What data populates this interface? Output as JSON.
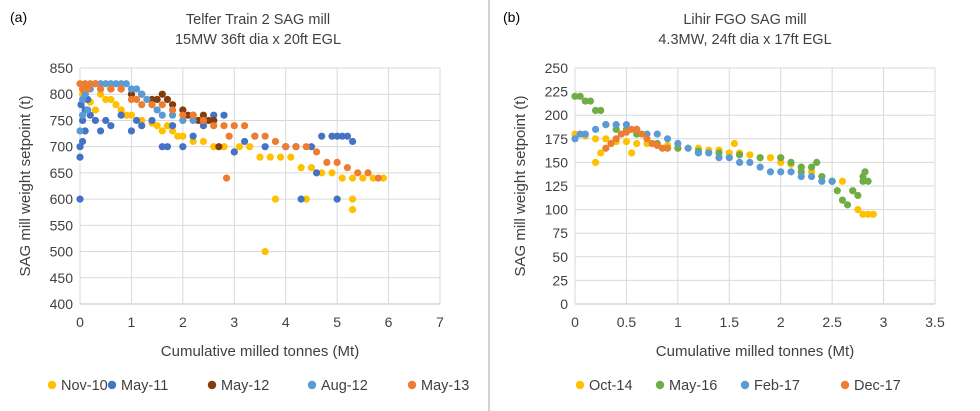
{
  "colors": {
    "yellow": "#ffc000",
    "darkblue": "#4472c4",
    "brown": "#843c0c",
    "lightblue": "#5b9bd5",
    "orange": "#ed7d31",
    "green": "#70ad47"
  },
  "chart_data": [
    {
      "type": "scatter",
      "panel_label": "(a)",
      "title": [
        "Telfer Train 2 SAG mill",
        "15MW 36ft dia x 20ft EGL"
      ],
      "xlabel": "Cumulative milled tonnes (Mt)",
      "ylabel": "SAG mill weight setpoint (t)",
      "xlim": [
        0,
        7
      ],
      "ylim": [
        400,
        850
      ],
      "xticks": [
        "0",
        "1",
        "2",
        "3",
        "4",
        "5",
        "6",
        "7"
      ],
      "yticks": [
        "400",
        "450",
        "500",
        "550",
        "600",
        "650",
        "700",
        "750",
        "800",
        "850"
      ],
      "legend_position": "bottom",
      "series": [
        {
          "name": "Nov-10",
          "color": "#ffc000",
          "x": [
            0.05,
            0.1,
            0.2,
            0.3,
            0.4,
            0.5,
            0.6,
            0.7,
            0.8,
            0.9,
            1.0,
            1.2,
            1.4,
            1.5,
            1.6,
            1.7,
            1.8,
            1.9,
            2.0,
            2.2,
            2.4,
            2.6,
            2.8,
            3.0,
            3.1,
            3.3,
            3.5,
            3.7,
            3.9,
            4.1,
            4.3,
            4.5,
            4.7,
            4.9,
            5.1,
            5.3,
            5.5,
            5.7,
            5.9,
            3.8,
            3.6,
            4.4,
            5.3,
            5.3
          ],
          "y": [
            800,
            790,
            785,
            770,
            800,
            790,
            790,
            780,
            770,
            760,
            760,
            750,
            745,
            740,
            730,
            740,
            730,
            720,
            720,
            710,
            710,
            700,
            700,
            690,
            700,
            700,
            680,
            680,
            680,
            680,
            660,
            660,
            650,
            650,
            640,
            640,
            640,
            640,
            640,
            600,
            500,
            600,
            600,
            580
          ]
        },
        {
          "name": "May-11",
          "color": "#4472c4",
          "x": [
            0.0,
            0.0,
            0.0,
            0.05,
            0.05,
            0.1,
            0.1,
            0.15,
            0.2,
            0.3,
            0.4,
            0.5,
            0.6,
            0.8,
            1.0,
            1.1,
            1.2,
            1.4,
            1.6,
            1.7,
            1.8,
            2.0,
            2.2,
            2.4,
            2.6,
            2.8,
            3.0,
            3.2,
            3.4,
            3.6,
            4.0,
            4.2,
            4.3,
            4.5,
            4.6,
            4.7,
            4.9,
            5.0,
            5.1,
            5.2,
            5.3,
            5.0,
            0.02,
            0.1
          ],
          "y": [
            600,
            680,
            700,
            710,
            750,
            730,
            770,
            790,
            760,
            750,
            730,
            750,
            740,
            760,
            730,
            750,
            740,
            750,
            700,
            700,
            740,
            700,
            720,
            740,
            760,
            760,
            690,
            710,
            720,
            700,
            700,
            700,
            600,
            700,
            650,
            720,
            720,
            720,
            720,
            720,
            710,
            600,
            780,
            800
          ]
        },
        {
          "name": "May-12",
          "color": "#843c0c",
          "x": [
            0.6,
            0.8,
            1.0,
            1.2,
            1.4,
            1.5,
            1.6,
            1.7,
            1.8,
            2.0,
            2.1,
            2.2,
            2.3,
            2.4,
            2.5,
            2.6,
            2.7
          ],
          "y": [
            810,
            810,
            800,
            800,
            790,
            790,
            800,
            790,
            780,
            770,
            760,
            760,
            750,
            760,
            750,
            750,
            700
          ]
        },
        {
          "name": "Aug-12",
          "color": "#5b9bd5",
          "x": [
            0.0,
            0.05,
            0.1,
            0.2,
            0.3,
            0.4,
            0.5,
            0.6,
            0.7,
            0.8,
            0.9,
            1.0,
            1.1,
            1.2,
            1.3,
            1.4,
            1.5,
            1.6,
            1.8,
            2.0,
            2.2,
            0.05,
            0.15
          ],
          "y": [
            730,
            790,
            800,
            810,
            820,
            820,
            820,
            820,
            820,
            820,
            820,
            810,
            810,
            800,
            790,
            780,
            770,
            760,
            760,
            750,
            750,
            760,
            770
          ]
        },
        {
          "name": "May-13",
          "color": "#ed7d31",
          "x": [
            0.0,
            0.05,
            0.1,
            0.15,
            0.2,
            0.3,
            0.4,
            0.6,
            0.8,
            1.0,
            1.1,
            1.2,
            1.4,
            1.6,
            1.8,
            2.0,
            2.2,
            2.4,
            2.6,
            2.8,
            2.9,
            3.0,
            3.2,
            3.4,
            3.6,
            3.8,
            4.0,
            4.2,
            4.4,
            4.6,
            4.8,
            5.0,
            5.2,
            5.4,
            5.6,
            5.8,
            2.85
          ],
          "y": [
            820,
            810,
            820,
            810,
            820,
            820,
            810,
            810,
            810,
            790,
            790,
            780,
            780,
            780,
            770,
            760,
            760,
            750,
            740,
            740,
            720,
            740,
            740,
            720,
            720,
            710,
            700,
            700,
            700,
            690,
            670,
            670,
            660,
            650,
            650,
            640,
            640
          ]
        }
      ]
    },
    {
      "type": "scatter",
      "panel_label": "(b)",
      "title": [
        "Lihir FGO SAG mill",
        "4.3MW, 24ft dia x 17ft EGL"
      ],
      "xlabel": "Cumulative milled tonnes (Mt)",
      "ylabel": "SAG mill weight setpoint (t)",
      "xlim": [
        0,
        3.5
      ],
      "ylim": [
        0,
        250
      ],
      "xticks": [
        "0",
        "0.5",
        "1",
        "1.5",
        "2",
        "2.5",
        "3",
        "3.5"
      ],
      "yticks": [
        "0",
        "25",
        "50",
        "75",
        "100",
        "125",
        "150",
        "175",
        "200",
        "225",
        "250"
      ],
      "legend_position": "bottom",
      "series": [
        {
          "name": "Oct-14",
          "color": "#ffc000",
          "x": [
            0.0,
            0.1,
            0.2,
            0.3,
            0.4,
            0.5,
            0.6,
            0.7,
            0.8,
            0.9,
            1.0,
            1.1,
            1.2,
            1.3,
            1.4,
            1.5,
            1.6,
            1.7,
            1.8,
            1.9,
            2.0,
            2.1,
            2.2,
            2.3,
            2.4,
            2.5,
            2.6,
            2.7,
            2.75,
            2.8,
            2.85,
            2.9,
            0.2,
            0.25,
            0.55,
            1.55,
            2.0
          ],
          "y": [
            180,
            178,
            175,
            175,
            172,
            172,
            170,
            170,
            170,
            168,
            165,
            165,
            165,
            163,
            163,
            160,
            160,
            158,
            155,
            155,
            150,
            148,
            145,
            140,
            135,
            130,
            130,
            120,
            100,
            95,
            95,
            95,
            150,
            160,
            160,
            170,
            155
          ]
        },
        {
          "name": "May-16",
          "color": "#70ad47",
          "x": [
            0.0,
            0.05,
            0.1,
            0.15,
            0.2,
            0.25,
            0.3,
            0.4,
            0.5,
            0.6,
            0.8,
            1.0,
            1.2,
            1.4,
            1.6,
            1.8,
            2.0,
            2.1,
            2.2,
            2.3,
            2.4,
            2.5,
            2.55,
            2.6,
            2.65,
            2.7,
            2.75,
            2.8,
            2.85,
            2.2,
            2.35,
            2.8,
            2.82
          ],
          "y": [
            220,
            220,
            215,
            215,
            205,
            205,
            190,
            185,
            185,
            180,
            170,
            165,
            162,
            160,
            158,
            155,
            155,
            150,
            140,
            145,
            135,
            130,
            120,
            110,
            105,
            120,
            115,
            130,
            130,
            145,
            150,
            135,
            140
          ]
        },
        {
          "name": "Feb-17",
          "color": "#5b9bd5",
          "x": [
            0.0,
            0.05,
            0.1,
            0.2,
            0.3,
            0.4,
            0.5,
            0.6,
            0.7,
            0.8,
            0.9,
            1.0,
            1.1,
            1.2,
            1.3,
            1.4,
            1.5,
            1.6,
            1.7,
            1.8,
            1.9,
            2.0,
            2.1,
            2.2,
            2.3,
            2.4,
            2.5
          ],
          "y": [
            175,
            180,
            180,
            185,
            190,
            190,
            190,
            185,
            180,
            180,
            175,
            170,
            165,
            160,
            160,
            155,
            155,
            150,
            150,
            145,
            140,
            140,
            140,
            135,
            135,
            130,
            130
          ]
        },
        {
          "name": "Dec-17",
          "color": "#ed7d31",
          "x": [
            0.3,
            0.35,
            0.4,
            0.45,
            0.5,
            0.55,
            0.6,
            0.65,
            0.7,
            0.75,
            0.8,
            0.85,
            0.9
          ],
          "y": [
            165,
            170,
            175,
            180,
            182,
            185,
            185,
            180,
            175,
            170,
            168,
            165,
            165
          ]
        }
      ]
    }
  ]
}
